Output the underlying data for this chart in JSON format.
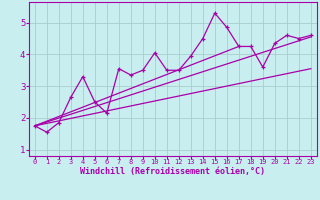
{
  "title": "",
  "xlabel": "Windchill (Refroidissement éolien,°C)",
  "ylabel": "",
  "bg_color": "#c8eef0",
  "line_color": "#aa00aa",
  "grid_color": "#aacccc",
  "xlim": [
    -0.5,
    23.5
  ],
  "ylim": [
    0.8,
    5.65
  ],
  "xticks": [
    0,
    1,
    2,
    3,
    4,
    5,
    6,
    7,
    8,
    9,
    10,
    11,
    12,
    13,
    14,
    15,
    16,
    17,
    18,
    19,
    20,
    21,
    22,
    23
  ],
  "yticks": [
    1,
    2,
    3,
    4,
    5
  ],
  "data_x": [
    0,
    1,
    2,
    3,
    4,
    5,
    6,
    7,
    8,
    9,
    10,
    11,
    12,
    13,
    14,
    15,
    16,
    17,
    18,
    19,
    20,
    21,
    22,
    23
  ],
  "data_y": [
    1.75,
    1.55,
    1.85,
    2.65,
    3.3,
    2.5,
    2.15,
    3.55,
    3.35,
    3.5,
    4.05,
    3.5,
    3.5,
    3.95,
    4.5,
    5.3,
    4.85,
    4.25,
    4.25,
    3.6,
    4.35,
    4.6,
    4.5,
    4.6
  ],
  "trend1_x": [
    0,
    23
  ],
  "trend1_y": [
    1.75,
    4.55
  ],
  "trend2_x": [
    0,
    23
  ],
  "trend2_y": [
    1.75,
    3.55
  ],
  "trend3_x": [
    0,
    17
  ],
  "trend3_y": [
    1.75,
    4.25
  ]
}
